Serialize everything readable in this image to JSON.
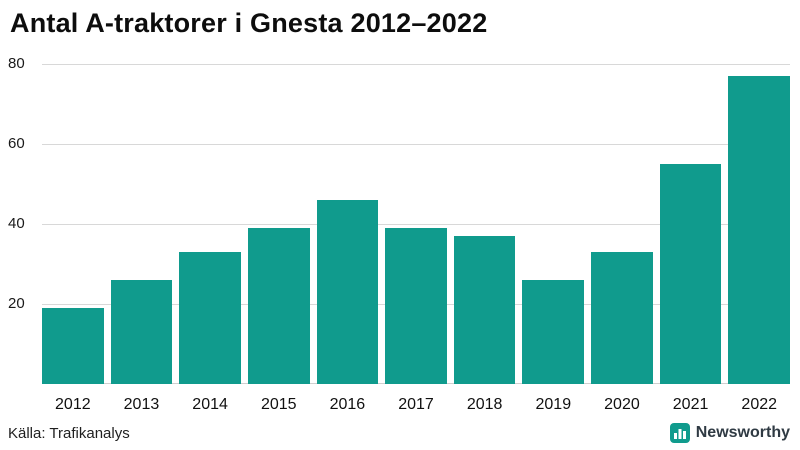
{
  "title": "Antal A-traktorer i Gnesta 2012–2022",
  "source": "Källa: Trafikanalys",
  "branding": {
    "name": "Newsworthy"
  },
  "colors": {
    "bar": "#109b8d",
    "gridline": "#d8d8d8",
    "logo": "#109b8d"
  },
  "chart_data": {
    "type": "bar",
    "title": "Antal A-traktorer i Gnesta 2012–2022",
    "categories": [
      "2012",
      "2013",
      "2014",
      "2015",
      "2016",
      "2017",
      "2018",
      "2019",
      "2020",
      "2021",
      "2022"
    ],
    "values": [
      19,
      26,
      33,
      39,
      46,
      39,
      37,
      26,
      33,
      55,
      77
    ],
    "xlabel": "",
    "ylabel": "",
    "ylim": [
      0,
      80
    ],
    "yticks": [
      20,
      40,
      60,
      80
    ],
    "grid": "horizontal",
    "legend": "none"
  }
}
